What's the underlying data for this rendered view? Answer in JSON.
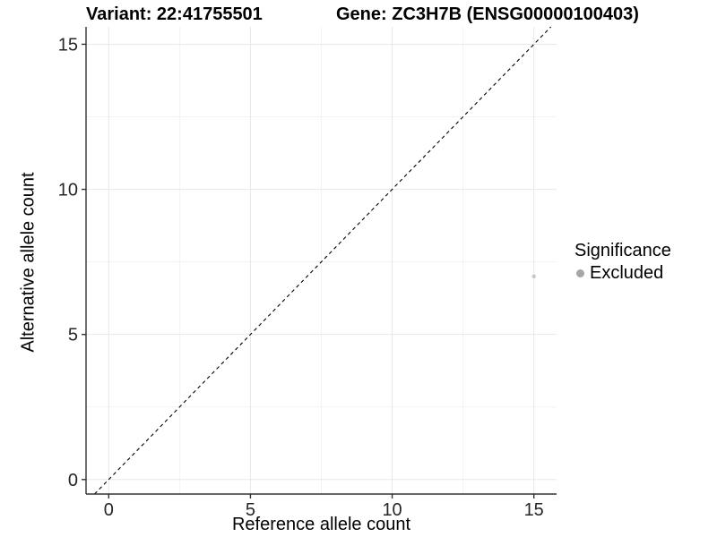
{
  "titles": {
    "left": "Variant: 22:41755501",
    "right": "Gene: ZC3H7B (ENSG00000100403)"
  },
  "chart_data": {
    "type": "scatter",
    "xlabel": "Reference allele count",
    "ylabel": "Alternative allele count",
    "x_ticks": [
      0,
      5,
      10,
      15
    ],
    "y_ticks": [
      0,
      5,
      10,
      15
    ],
    "x_minor_ticks": [
      2.5,
      7.5,
      12.5
    ],
    "y_minor_ticks": [
      2.5,
      7.5,
      12.5
    ],
    "xlim": [
      -0.8,
      15.8
    ],
    "ylim": [
      -0.5,
      15.6
    ],
    "grid": true,
    "points": [
      {
        "x": 15,
        "y": 7,
        "significance": "Excluded"
      }
    ],
    "reference_line": {
      "slope": 1,
      "intercept": 0,
      "style": "dashed"
    },
    "legend": {
      "title": "Significance",
      "position": "right",
      "items": [
        {
          "label": "Excluded",
          "color": "#a6a6a6"
        }
      ]
    },
    "colors": {
      "point": "#c7c7c7",
      "grid_major": "#e8e8e8",
      "grid_minor": "#f3f3f3",
      "axis_line": "#333333",
      "tick_label": "#262626",
      "reference_line": "#000000"
    }
  }
}
